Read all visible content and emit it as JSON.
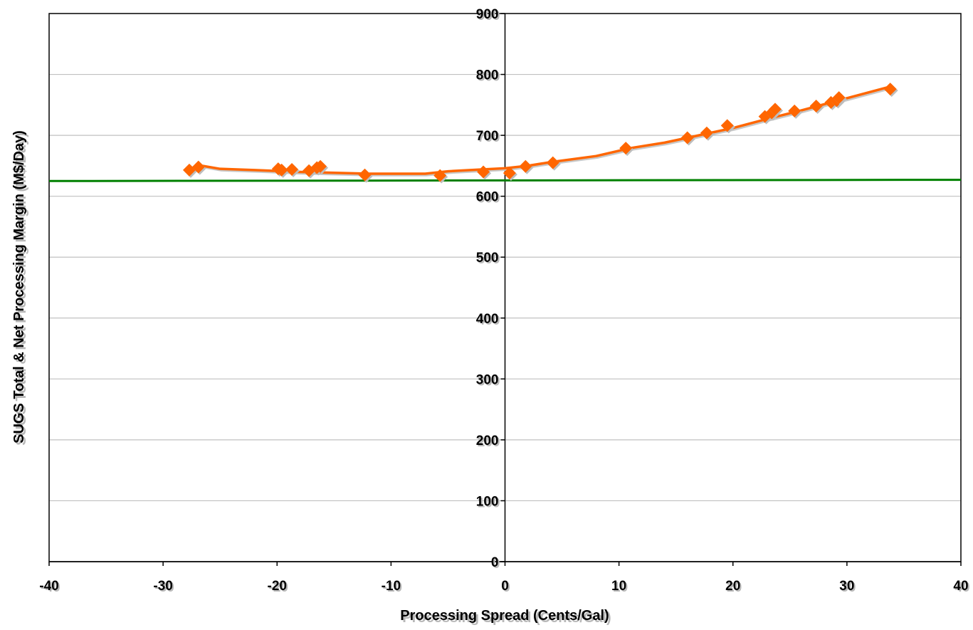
{
  "chart_data": {
    "type": "scatter",
    "title": "",
    "xlabel": "Processing Spread (Cents/Gal)",
    "ylabel": "SUGS Total & Net Processing Margin (M$/Day)",
    "xlim": [
      -40,
      40
    ],
    "ylim": [
      0,
      900
    ],
    "xticks": [
      "-40",
      "-30",
      "-20",
      "-10",
      "0",
      "10",
      "20",
      "30",
      "40"
    ],
    "yticks": [
      "0",
      "100",
      "200",
      "300",
      "400",
      "500",
      "600",
      "700",
      "800",
      "900"
    ],
    "grid": "horizontal",
    "legend": "none",
    "colors": {
      "series": "#FF6600",
      "reference": "#008000",
      "grid": "#c0c0c0",
      "axis": "#000000"
    },
    "series": [
      {
        "marker": "diamond",
        "points": [
          {
            "x": -27.7,
            "y": 643
          },
          {
            "x": -26.9,
            "y": 648
          },
          {
            "x": -19.9,
            "y": 645
          },
          {
            "x": -19.6,
            "y": 643
          },
          {
            "x": -18.7,
            "y": 644
          },
          {
            "x": -17.2,
            "y": 642
          },
          {
            "x": -16.5,
            "y": 647
          },
          {
            "x": -16.2,
            "y": 649
          },
          {
            "x": -12.3,
            "y": 635
          },
          {
            "x": -5.7,
            "y": 634
          },
          {
            "x": -1.9,
            "y": 640
          },
          {
            "x": 0.4,
            "y": 638
          },
          {
            "x": 1.8,
            "y": 649
          },
          {
            "x": 4.2,
            "y": 655
          },
          {
            "x": 10.6,
            "y": 679
          },
          {
            "x": 16.0,
            "y": 696
          },
          {
            "x": 17.7,
            "y": 704
          },
          {
            "x": 19.5,
            "y": 716
          },
          {
            "x": 22.8,
            "y": 731
          },
          {
            "x": 23.4,
            "y": 737
          },
          {
            "x": 23.7,
            "y": 743
          },
          {
            "x": 25.4,
            "y": 740
          },
          {
            "x": 27.3,
            "y": 748
          },
          {
            "x": 28.6,
            "y": 754
          },
          {
            "x": 29.1,
            "y": 757
          },
          {
            "x": 29.3,
            "y": 762
          },
          {
            "x": 33.8,
            "y": 776
          }
        ],
        "trend": [
          {
            "x": -27.7,
            "y": 643
          },
          {
            "x": -26.9,
            "y": 651
          },
          {
            "x": -25.0,
            "y": 645
          },
          {
            "x": -22.0,
            "y": 643
          },
          {
            "x": -18.0,
            "y": 640
          },
          {
            "x": -12.0,
            "y": 637
          },
          {
            "x": -7.0,
            "y": 637
          },
          {
            "x": -5.0,
            "y": 641
          },
          {
            "x": -2.0,
            "y": 644
          },
          {
            "x": 0.0,
            "y": 646
          },
          {
            "x": 2.0,
            "y": 650
          },
          {
            "x": 4.0,
            "y": 656
          },
          {
            "x": 8.0,
            "y": 666
          },
          {
            "x": 11.0,
            "y": 679
          },
          {
            "x": 14.0,
            "y": 688
          },
          {
            "x": 17.0,
            "y": 700
          },
          {
            "x": 20.0,
            "y": 712
          },
          {
            "x": 23.0,
            "y": 727
          },
          {
            "x": 26.0,
            "y": 741
          },
          {
            "x": 29.0,
            "y": 756
          },
          {
            "x": 34.0,
            "y": 781
          }
        ]
      }
    ],
    "reference_line": {
      "x": [
        -40,
        40
      ],
      "y": [
        625,
        627
      ]
    }
  }
}
